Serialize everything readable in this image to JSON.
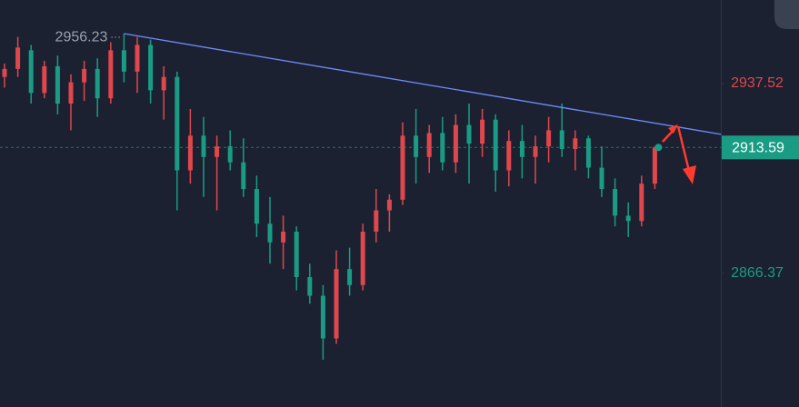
{
  "chart_data": {
    "type": "candlestick",
    "ylim": [
      2816.3,
      2968.84
    ],
    "yticks": [
      2937.52,
      2866.37
    ],
    "ytick_colors": [
      "#e0474c",
      "#1a9c84"
    ],
    "up_color": "#e0474c",
    "down_color": "#1a9c84",
    "last_price": 2913.59,
    "last_price_color": "#1a9c84",
    "high_annotation": {
      "index": 9,
      "value": 2956.23
    },
    "trendline": {
      "color": "#6f8cff",
      "points": [
        [
          9,
          2956.23
        ],
        [
          54,
          2918.5
        ]
      ]
    },
    "ohlc": [
      [
        2940,
        2945,
        2936,
        2943
      ],
      [
        2943,
        2955,
        2940,
        2951
      ],
      [
        2950,
        2952,
        2930,
        2934
      ],
      [
        2934,
        2946,
        2932,
        2944
      ],
      [
        2944,
        2948,
        2926,
        2930
      ],
      [
        2930,
        2941,
        2920,
        2938
      ],
      [
        2938,
        2946,
        2931,
        2943
      ],
      [
        2943,
        2947,
        2925,
        2932
      ],
      [
        2932,
        2953,
        2930,
        2950
      ],
      [
        2950,
        2956.23,
        2938,
        2942
      ],
      [
        2942,
        2955,
        2934,
        2952
      ],
      [
        2952,
        2954,
        2930,
        2935
      ],
      [
        2935,
        2944,
        2924,
        2940
      ],
      [
        2940,
        2942,
        2890,
        2905
      ],
      [
        2905,
        2928,
        2900,
        2918
      ],
      [
        2918,
        2925,
        2895,
        2910
      ],
      [
        2910,
        2918,
        2890,
        2914
      ],
      [
        2914,
        2920,
        2905,
        2908
      ],
      [
        2908,
        2917,
        2895,
        2898
      ],
      [
        2898,
        2903,
        2880,
        2885
      ],
      [
        2885,
        2895,
        2870,
        2878
      ],
      [
        2878,
        2888,
        2868,
        2882
      ],
      [
        2882,
        2884,
        2860,
        2865
      ],
      [
        2865,
        2870,
        2855,
        2858
      ],
      [
        2858,
        2862,
        2834,
        2842
      ],
      [
        2842,
        2875,
        2840,
        2868
      ],
      [
        2868,
        2876,
        2858,
        2862
      ],
      [
        2862,
        2885,
        2860,
        2882
      ],
      [
        2882,
        2898,
        2878,
        2890
      ],
      [
        2890,
        2896,
        2882,
        2894
      ],
      [
        2894,
        2923,
        2892,
        2918
      ],
      [
        2918,
        2928,
        2900,
        2910
      ],
      [
        2910,
        2922,
        2904,
        2919
      ],
      [
        2919,
        2925,
        2905,
        2908
      ],
      [
        2908,
        2926,
        2904,
        2922
      ],
      [
        2922,
        2930,
        2900,
        2915
      ],
      [
        2915,
        2928,
        2910,
        2924
      ],
      [
        2924,
        2926,
        2897,
        2905
      ],
      [
        2905,
        2920,
        2899,
        2916
      ],
      [
        2916,
        2922,
        2902,
        2910
      ],
      [
        2910,
        2918,
        2900,
        2914
      ],
      [
        2914,
        2925,
        2908,
        2920
      ],
      [
        2920,
        2930,
        2910,
        2913
      ],
      [
        2913,
        2920,
        2905,
        2917
      ],
      [
        2917,
        2918,
        2902,
        2906
      ],
      [
        2906,
        2914,
        2895,
        2898
      ],
      [
        2898,
        2902,
        2884,
        2888
      ],
      [
        2888,
        2893,
        2880,
        2886
      ],
      [
        2886,
        2903,
        2884,
        2900
      ],
      [
        2900,
        2914,
        2898,
        2913.59
      ]
    ]
  }
}
